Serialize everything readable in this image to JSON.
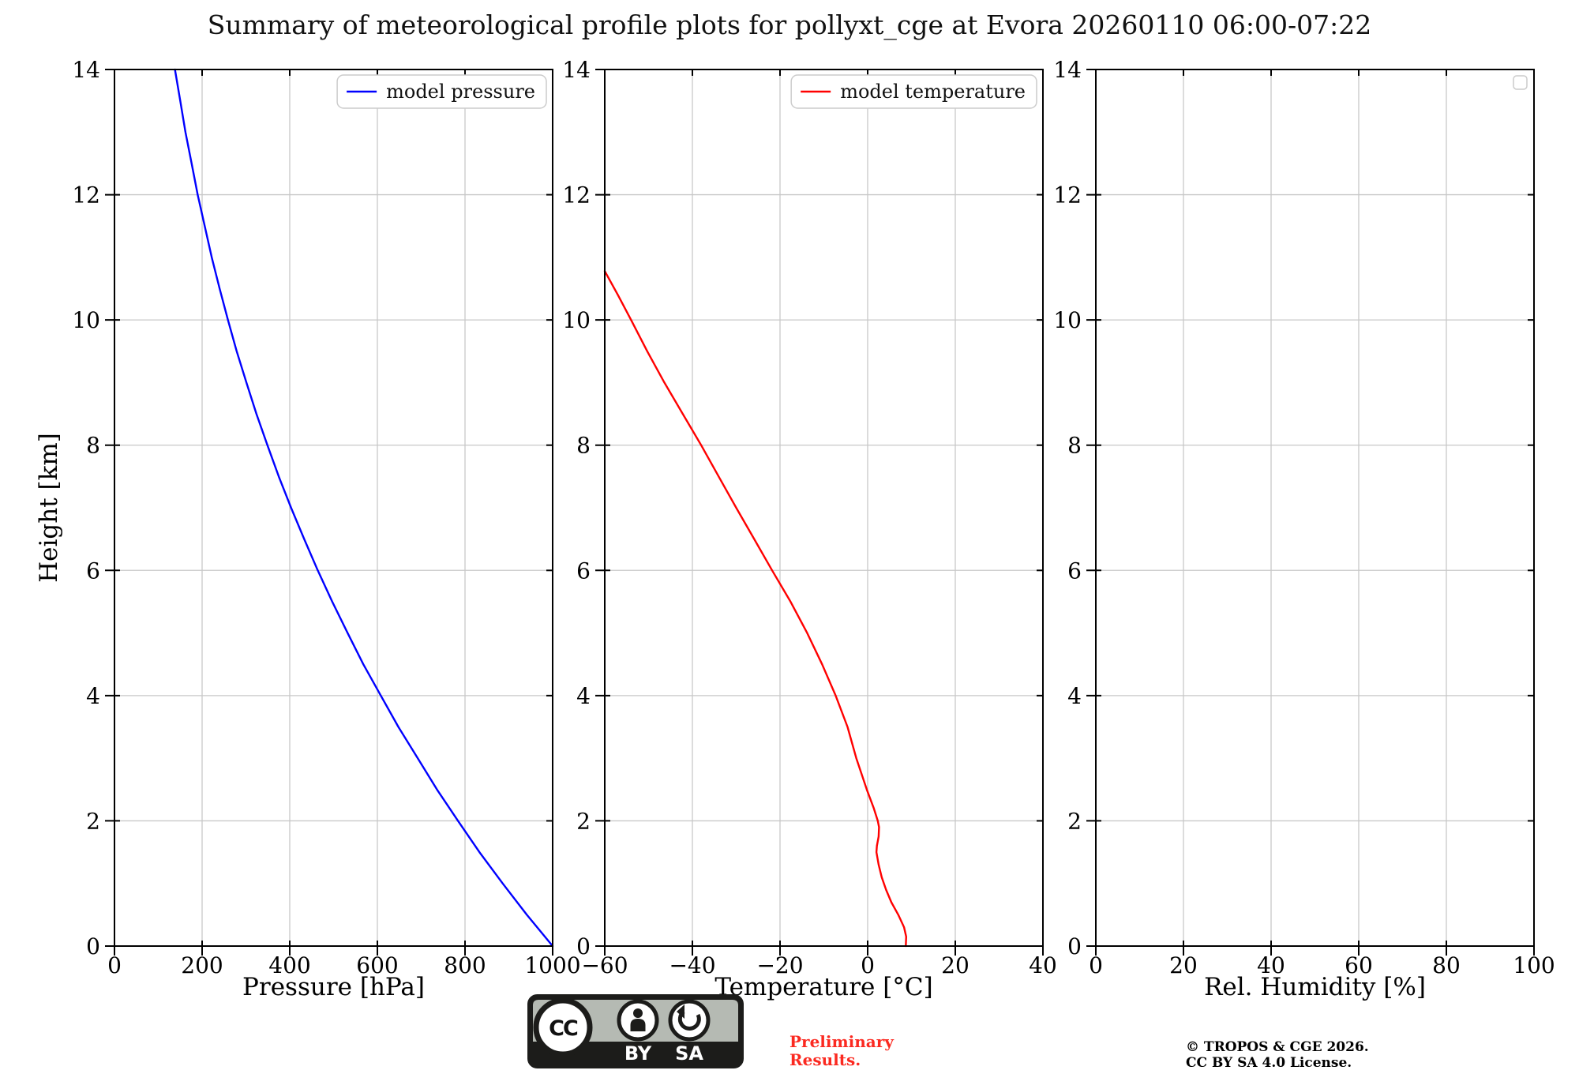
{
  "title": "Summary of meteorological profile plots for pollyxt_cge at Evora 20260110 06:00-07:22",
  "colors": {
    "pressure_line": "#0000ff",
    "temperature_line": "#ff0000",
    "grid": "#c8c8c8",
    "spine": "#000000",
    "legend_border": "#cccccc",
    "preliminary": "#fb2920",
    "badge_gray": "#b5bab3",
    "badge_dark": "#1c1c1a"
  },
  "chart_data": [
    {
      "id": "pressure-profile",
      "type": "line",
      "xlabel": "Pressure [hPa]",
      "ylabel": "Height [km]",
      "xlim": [
        0,
        1000
      ],
      "ylim": [
        0,
        14
      ],
      "xtick_values": [
        0,
        200,
        400,
        600,
        800,
        1000
      ],
      "xtick_labels": [
        "0",
        "200",
        "400",
        "600",
        "800",
        "1000"
      ],
      "ytick_values": [
        0,
        2,
        4,
        6,
        8,
        10,
        12,
        14
      ],
      "ytick_labels": [
        "0",
        "2",
        "4",
        "6",
        "8",
        "10",
        "12",
        "14"
      ],
      "grid": true,
      "legend": "upper right",
      "series": [
        {
          "name": "model pressure",
          "color": "#0000ff",
          "x": [
            1000,
            941,
            886,
            833,
            784,
            736,
            692,
            648,
            608,
            568,
            532,
            497,
            464,
            433,
            403,
            375,
            349,
            324,
            301,
            279,
            259,
            240,
            222,
            206,
            190,
            176,
            162,
            150,
            138
          ],
          "y": [
            0,
            0.5,
            1,
            1.5,
            2,
            2.5,
            3,
            3.5,
            4,
            4.5,
            5,
            5.5,
            6,
            6.5,
            7,
            7.5,
            8,
            8.5,
            9,
            9.5,
            10,
            10.5,
            11,
            11.5,
            12,
            12.5,
            13,
            13.5,
            14
          ]
        }
      ]
    },
    {
      "id": "temperature-profile",
      "type": "line",
      "xlabel": "Temperature [°C]",
      "ylabel": "",
      "xlim": [
        -60,
        40
      ],
      "ylim": [
        0,
        14
      ],
      "xtick_values": [
        -60,
        -40,
        -20,
        0,
        20,
        40
      ],
      "xtick_labels": [
        "−60",
        "−40",
        "−20",
        "0",
        "20",
        "40"
      ],
      "ytick_values": [
        0,
        2,
        4,
        6,
        8,
        10,
        12,
        14
      ],
      "ytick_labels": [
        "0",
        "2",
        "4",
        "6",
        "8",
        "10",
        "12",
        "14"
      ],
      "grid": true,
      "legend": "upper right",
      "series": [
        {
          "name": "model temperature",
          "color": "#ff0000",
          "x": [
            8.7,
            8.8,
            8.3,
            7.0,
            5.4,
            4.2,
            3.2,
            2.5,
            2.0,
            2.1,
            2.5,
            2.6,
            2.3,
            1.4,
            -0.2,
            -2.6,
            -4.6,
            -7.3,
            -10.4,
            -13.8,
            -17.6,
            -21.8,
            -25.9,
            -30.0,
            -34.0,
            -38.0,
            -42.2,
            -46.4,
            -50.3,
            -54.0,
            -57.0,
            -60.0
          ],
          "y": [
            0,
            0.15,
            0.3,
            0.5,
            0.7,
            0.9,
            1.1,
            1.3,
            1.5,
            1.6,
            1.75,
            1.9,
            2.0,
            2.2,
            2.5,
            3.0,
            3.5,
            4.0,
            4.5,
            5.0,
            5.5,
            6.0,
            6.5,
            7.0,
            7.5,
            8.0,
            8.5,
            9.0,
            9.5,
            10.0,
            10.4,
            10.78
          ]
        }
      ]
    },
    {
      "id": "humidity-profile",
      "type": "line",
      "xlabel": "Rel. Humidity [%]",
      "ylabel": "",
      "xlim": [
        0,
        100
      ],
      "ylim": [
        0,
        14
      ],
      "xtick_values": [
        0,
        20,
        40,
        60,
        80,
        100
      ],
      "xtick_labels": [
        "0",
        "20",
        "40",
        "60",
        "80",
        "100"
      ],
      "ytick_values": [
        0,
        2,
        4,
        6,
        8,
        10,
        12,
        14
      ],
      "ytick_labels": [
        "0",
        "2",
        "4",
        "6",
        "8",
        "10",
        "12",
        "14"
      ],
      "grid": true,
      "legend": "upper right (empty)",
      "series": []
    }
  ],
  "footer": {
    "badge": {
      "cc": "CC",
      "by": "BY",
      "sa": "SA"
    },
    "preliminary": "Preliminary\nResults.",
    "copyright": "© TROPOS & CGE 2026.\nCC BY SA 4.0 License."
  }
}
